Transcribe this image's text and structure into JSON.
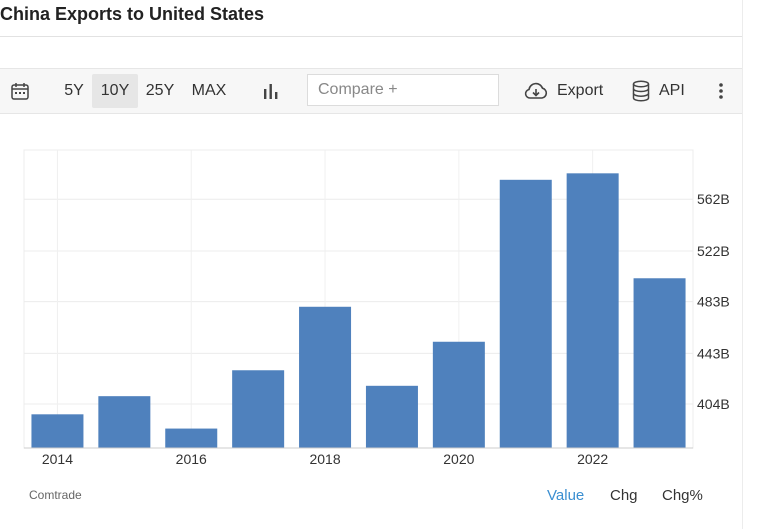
{
  "page": {
    "title": "China Exports to United States"
  },
  "toolbar": {
    "ranges": [
      "5Y",
      "10Y",
      "25Y",
      "MAX"
    ],
    "active_range": "10Y",
    "compare_placeholder": "Compare +",
    "export_label": "Export",
    "api_label": "API",
    "icons": {
      "calendar": "calendar-icon",
      "chart_type": "bar-chart-icon",
      "export": "cloud-download-icon",
      "api": "database-icon",
      "more": "more-vertical-icon"
    }
  },
  "chart_data": {
    "type": "bar",
    "title": "",
    "xlabel": "",
    "ylabel": "",
    "categories": [
      "2014",
      "2015",
      "2016",
      "2017",
      "2018",
      "2019",
      "2020",
      "2021",
      "2022",
      "2023"
    ],
    "values": [
      396,
      410,
      385,
      430,
      479,
      418,
      452,
      577,
      582,
      501
    ],
    "x_tick_labels": [
      "2014",
      "2016",
      "2018",
      "2020",
      "2022"
    ],
    "y_ticks": [
      404,
      443,
      483,
      522,
      562
    ],
    "y_tick_labels": [
      "404B",
      "443B",
      "483B",
      "522B",
      "562B"
    ],
    "ylim": [
      370,
      600
    ],
    "y_axis_side": "right",
    "grid": true,
    "bar_color": "#4f81bd"
  },
  "footer": {
    "source": "Comtrade",
    "view_options": [
      "Value",
      "Chg",
      "Chg%"
    ],
    "active_view": "Value"
  },
  "colors": {
    "accent": "#3b8fd1",
    "bar": "#4f81bd"
  }
}
